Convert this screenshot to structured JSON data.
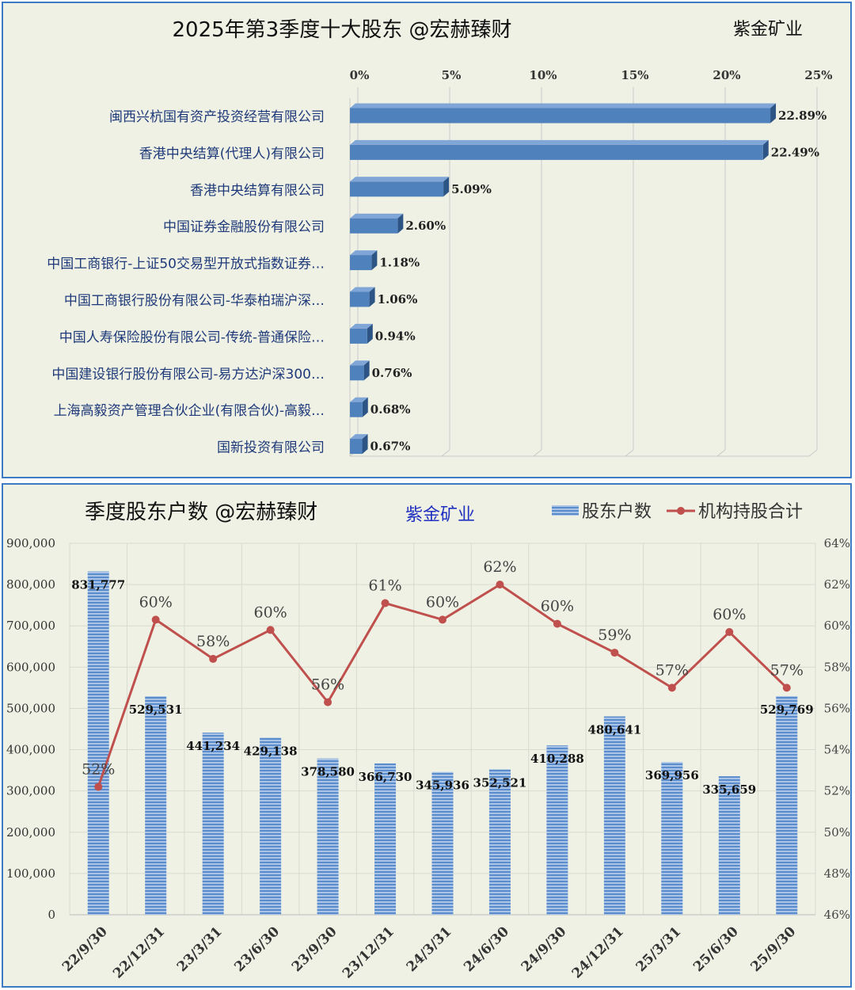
{
  "chart1": {
    "title": "2025年第3季度十大股东 @宏赫臻财",
    "company": "紫金矿业",
    "chart_data": {
      "type": "bar",
      "orientation": "horizontal",
      "title": "2025年第3季度十大股东 @宏赫臻财",
      "categories": [
        "闽西兴杭国有资产投资经营有限公司",
        "香港中央结算(代理人)有限公司",
        "香港中央结算有限公司",
        "中国证券金融股份有限公司",
        "中国工商银行-上证50交易型开放式指数证券…",
        "中国工商银行股份有限公司-华泰柏瑞沪深…",
        "中国人寿保险股份有限公司-传统-普通保险…",
        "中国建设银行股份有限公司-易方达沪深300…",
        "上海高毅资产管理合伙企业(有限合伙)-高毅…",
        "国新投资有限公司"
      ],
      "values": [
        22.89,
        22.49,
        5.09,
        2.6,
        1.18,
        1.06,
        0.94,
        0.76,
        0.68,
        0.67
      ],
      "value_labels": [
        "22.89%",
        "22.49%",
        "5.09%",
        "2.60%",
        "1.18%",
        "1.06%",
        "0.94%",
        "0.76%",
        "0.68%",
        "0.67%"
      ],
      "xlim": [
        0,
        25
      ],
      "xticks": [
        "0%",
        "5%",
        "10%",
        "15%",
        "20%",
        "25%"
      ],
      "grid": true,
      "color": "#4f81bd"
    }
  },
  "chart2": {
    "title": "季度股东户数 @宏赫臻财",
    "company": "紫金矿业",
    "chart_data": {
      "type": "bar+line",
      "title": "季度股东户数 @宏赫臻财",
      "categories": [
        "22/9/30",
        "22/12/31",
        "23/3/31",
        "23/6/30",
        "23/9/30",
        "23/12/31",
        "24/3/31",
        "24/6/30",
        "24/9/30",
        "24/12/31",
        "25/3/31",
        "25/6/30",
        "25/9/30"
      ],
      "series": [
        {
          "name": "股东户数",
          "type": "bar",
          "axis": "left",
          "values": [
            831777,
            529531,
            441234,
            429138,
            378580,
            366730,
            345936,
            352521,
            410288,
            480641,
            369956,
            335659,
            529769
          ],
          "labels": [
            "831,777",
            "529,531",
            "441,234",
            "429,138",
            "378,580",
            "366,730",
            "345,936",
            "352,521",
            "410,288",
            "480,641",
            "369,956",
            "335,659",
            "529,769"
          ],
          "color": "#4f81bd"
        },
        {
          "name": "机构持股合计",
          "type": "line",
          "axis": "right",
          "values": [
            52.2,
            60.3,
            58.4,
            59.8,
            56.3,
            61.1,
            60.3,
            62.0,
            60.1,
            58.7,
            57.0,
            59.7,
            57.0
          ],
          "labels": [
            "52%",
            "60%",
            "58%",
            "60%",
            "56%",
            "61%",
            "60%",
            "62%",
            "60%",
            "59%",
            "57%",
            "60%",
            "57%"
          ],
          "color": "#c0504d"
        }
      ],
      "ylim_left": [
        0,
        900000
      ],
      "yticks_left": [
        "0",
        "100,000",
        "200,000",
        "300,000",
        "400,000",
        "500,000",
        "600,000",
        "700,000",
        "800,000",
        "900,000"
      ],
      "ylim_right": [
        46,
        64
      ],
      "yticks_right": [
        "46%",
        "48%",
        "50%",
        "52%",
        "54%",
        "56%",
        "58%",
        "60%",
        "62%",
        "64%"
      ],
      "legend": "top-right",
      "grid": true
    }
  }
}
